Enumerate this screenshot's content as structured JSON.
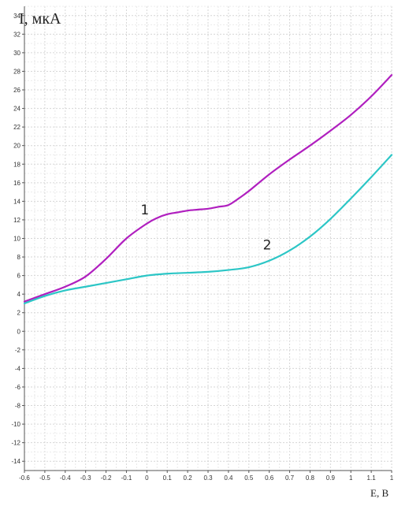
{
  "chart_data": {
    "type": "line",
    "ylabel": "I, мкА",
    "xlabel": "E, B",
    "xlim": [
      -0.6,
      1.2
    ],
    "ylim": [
      -15,
      35
    ],
    "x_ticks": [
      "-0.6",
      "-0.5",
      "-0.4",
      "-0.3",
      "-0.2",
      "-0.1",
      "0",
      "0.1",
      "0.2",
      "0.3",
      "0.4",
      "0.5",
      "0.6",
      "0.7",
      "0.8",
      "0.9",
      "1",
      "1.1",
      "1"
    ],
    "y_ticks": [
      "-14",
      "-12",
      "-10",
      "-8",
      "-6",
      "-4",
      "-2",
      "0",
      "2",
      "4",
      "6",
      "8",
      "10",
      "12",
      "14",
      "16",
      "18",
      "20",
      "22",
      "24",
      "26",
      "28",
      "30",
      "32",
      "34"
    ],
    "grid": true,
    "series": [
      {
        "name": "1",
        "color": "#b01fbf",
        "x": [
          -0.6,
          -0.5,
          -0.4,
          -0.3,
          -0.2,
          -0.1,
          0.0,
          0.05,
          0.1,
          0.15,
          0.2,
          0.25,
          0.3,
          0.35,
          0.4,
          0.45,
          0.5,
          0.6,
          0.7,
          0.8,
          0.9,
          1.0,
          1.1,
          1.2
        ],
        "y": [
          3.2,
          4.0,
          4.8,
          5.9,
          7.8,
          10.0,
          11.6,
          12.2,
          12.6,
          12.8,
          13.0,
          13.1,
          13.2,
          13.4,
          13.6,
          14.3,
          15.1,
          16.9,
          18.5,
          20.0,
          21.6,
          23.3,
          25.3,
          27.6
        ]
      },
      {
        "name": "2",
        "color": "#2cc6c6",
        "x": [
          -0.6,
          -0.5,
          -0.4,
          -0.3,
          -0.2,
          -0.1,
          0.0,
          0.1,
          0.2,
          0.3,
          0.4,
          0.5,
          0.6,
          0.7,
          0.8,
          0.9,
          1.0,
          1.1,
          1.2
        ],
        "y": [
          3.0,
          3.8,
          4.4,
          4.8,
          5.2,
          5.6,
          6.0,
          6.2,
          6.3,
          6.4,
          6.6,
          6.9,
          7.6,
          8.7,
          10.2,
          12.1,
          14.3,
          16.6,
          19.0
        ]
      }
    ],
    "curve_labels": [
      {
        "text": "1",
        "x": -0.01,
        "y": 12.6
      },
      {
        "text": "2",
        "x": 0.59,
        "y": 8.8
      }
    ]
  }
}
